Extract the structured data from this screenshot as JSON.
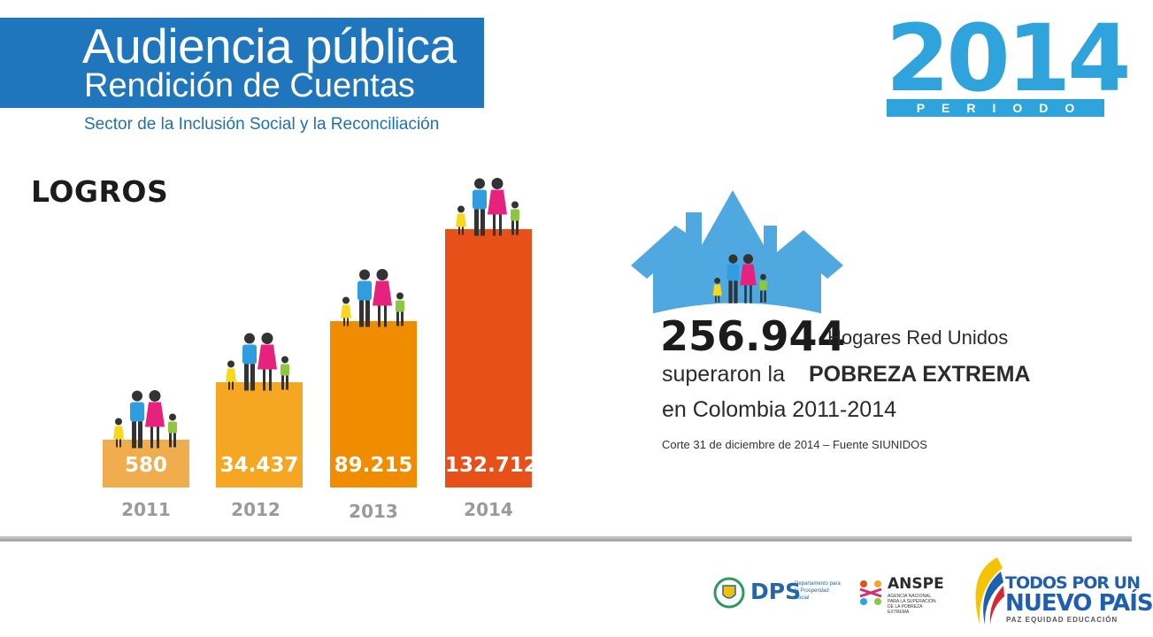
{
  "header": {
    "title_line1": "Audiencia pública",
    "title_line2": "Rendición de Cuentas",
    "subtitle": "Sector de la Inclusión Social y la Reconciliación",
    "year": "2014",
    "period": "PERIODO"
  },
  "section_title": "LOGROS",
  "bars": [
    {
      "year": "2011",
      "value_label": "580",
      "value": 580,
      "color": "#f0ad4e"
    },
    {
      "year": "2012",
      "value_label": "34.437",
      "value": 34437,
      "color": "#f5a623"
    },
    {
      "year": "2013",
      "value_label": "89.215",
      "value": 89215,
      "color": "#f08c00"
    },
    {
      "year": "2014",
      "value_label": "132.712",
      "value": 132712,
      "color": "#e8501a"
    }
  ],
  "summary": {
    "total": "256.944",
    "total_label": "Hogares Red Unidos",
    "line2_prefix": "superaron la",
    "line2_emphasis": "POBREZA EXTREMA",
    "line3": "en Colombia 2011-2014",
    "source": "Corte 31 de diciembre de 2014 – Fuente SIUNIDOS"
  },
  "footer": {
    "dps_short": "DPS",
    "dps_full": "Departamento para la Prosperidad Social",
    "anspe_short": "ANSPE",
    "anspe_full": "AGENCIA NACIONAL PARA LA SUPERACIÓN DE LA POBREZA EXTREMA",
    "slogan_line1": "TODOS POR UN",
    "slogan_line2": "NUEVO PAÍS",
    "slogan_line3": "PAZ  EQUIDAD  EDUCACIÓN"
  },
  "colors": {
    "brand_blue": "#1f76bd",
    "year_blue": "#2fa3dc",
    "house_blue": "#4fa9e0"
  },
  "icons": [
    "family-icon",
    "house-icon",
    "colombia-shield-icon",
    "anspe-logo-icon",
    "colombia-flag-swoosh-icon"
  ]
}
